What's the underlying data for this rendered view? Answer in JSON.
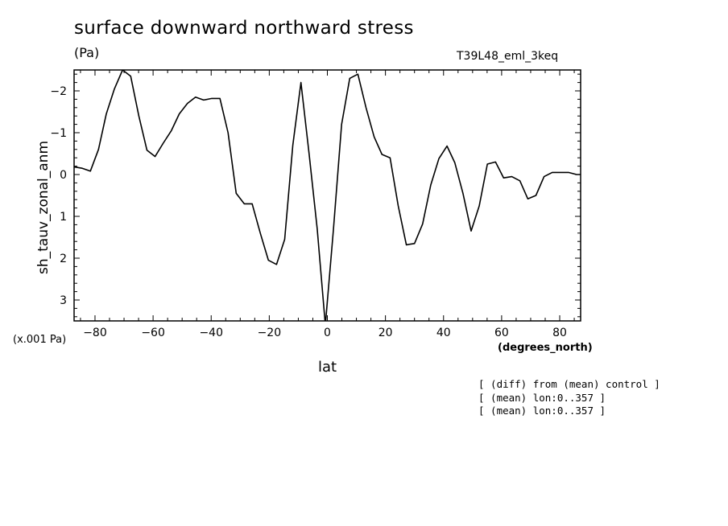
{
  "header": {
    "title": "surface downward northward stress",
    "units": "(Pa)",
    "run": "T39L48_eml_3keq"
  },
  "axes": {
    "scale_note": "(x.001 Pa)",
    "x_units": "(degrees_north)",
    "x_label": "lat",
    "y_label": "sh_tauv_zonal_anm"
  },
  "notes": [
    "[ (diff) from (mean) control ]",
    "[ (mean) lon:0..357 ]",
    "[ (mean) lon:0..357 ]"
  ],
  "chart_data": {
    "type": "line",
    "title": "surface downward northward stress",
    "xlabel": "lat",
    "ylabel": "sh_tauv_zonal_anm",
    "xlim": [
      -87.2,
      87.2
    ],
    "ylim": [
      3.5,
      -2.5
    ],
    "y_inverted": true,
    "x_ticks": [
      -80,
      -60,
      -40,
      -20,
      0,
      20,
      40,
      60,
      80
    ],
    "x_tick_labels": [
      "-80",
      "-60",
      "-40",
      "-20",
      "0",
      "20",
      "40",
      "60",
      "80"
    ],
    "y_ticks": [
      -2,
      -1,
      0,
      1,
      2,
      3
    ],
    "y_tick_labels": [
      "-2",
      "-1",
      "0",
      "1",
      "2",
      "3"
    ],
    "grid": false,
    "series": [
      {
        "x": [
          -87.2,
          -84.4,
          -81.6,
          -78.8,
          -76.1,
          -73.3,
          -70.5,
          -67.7,
          -64.9,
          -62.1,
          -59.3,
          -56.5,
          -53.7,
          -51.0,
          -48.2,
          -45.4,
          -42.6,
          -39.8,
          -37.0,
          -34.2,
          -31.4,
          -28.6,
          -25.9,
          -23.1,
          -20.3,
          -17.5,
          -14.7,
          -11.9,
          -9.1,
          -6.3,
          -3.5,
          -0.7,
          2.1,
          4.9,
          7.7,
          10.5,
          13.3,
          16.1,
          18.8,
          21.6,
          24.4,
          27.2,
          30.0,
          32.8,
          35.6,
          38.4,
          41.2,
          43.9,
          46.7,
          49.5,
          52.3,
          55.1,
          57.9,
          60.7,
          63.5,
          66.3,
          69.0,
          71.8,
          74.6,
          77.4,
          80.2,
          83.0,
          85.8,
          87.2
        ],
        "values": [
          -0.18,
          -0.15,
          -0.08,
          -0.6,
          -1.45,
          -2.05,
          -2.5,
          -2.35,
          -1.4,
          -0.58,
          -0.43,
          -0.75,
          -1.05,
          -1.45,
          -1.7,
          -1.85,
          -1.78,
          -1.82,
          -1.82,
          -1.0,
          0.45,
          0.7,
          0.7,
          1.4,
          2.05,
          2.15,
          1.55,
          -0.7,
          -2.2,
          -0.5,
          1.3,
          3.6,
          1.3,
          -1.2,
          -2.3,
          -2.4,
          -1.6,
          -0.9,
          -0.48,
          -0.4,
          0.75,
          1.68,
          1.65,
          1.18,
          0.25,
          -0.38,
          -0.68,
          -0.28,
          0.45,
          1.35,
          0.75,
          -0.25,
          -0.3,
          0.08,
          0.05,
          0.15,
          0.58,
          0.5,
          0.05,
          -0.05,
          -0.05,
          -0.05,
          0.0,
          0.0
        ]
      }
    ]
  }
}
